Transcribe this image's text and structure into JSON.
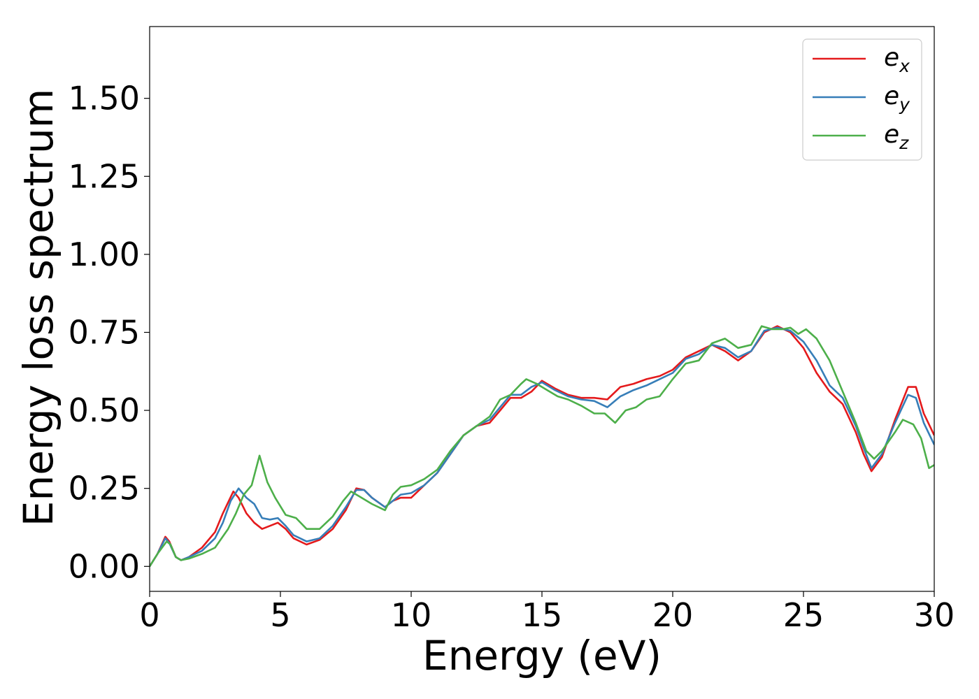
{
  "chart_data": {
    "type": "line",
    "title": "",
    "xlabel": "Energy (eV)",
    "ylabel": "Energy loss spectrum",
    "xlim": [
      0,
      30
    ],
    "ylim": [
      -0.08,
      1.73
    ],
    "xticks": [
      0,
      5,
      10,
      15,
      20,
      25,
      30
    ],
    "xtick_labels": [
      "0",
      "5",
      "10",
      "15",
      "20",
      "25",
      "30"
    ],
    "yticks": [
      0.0,
      0.25,
      0.5,
      0.75,
      1.0,
      1.25,
      1.5
    ],
    "ytick_labels": [
      "0.00",
      "0.25",
      "0.50",
      "0.75",
      "1.00",
      "1.25",
      "1.50"
    ],
    "grid": false,
    "legend_position": "top-right",
    "series": [
      {
        "name": "e",
        "subscript": "x",
        "color": "#e41a1c",
        "points": [
          [
            0,
            0
          ],
          [
            0.3,
            0.04
          ],
          [
            0.6,
            0.095
          ],
          [
            0.75,
            0.08
          ],
          [
            1.0,
            0.03
          ],
          [
            1.2,
            0.02
          ],
          [
            1.5,
            0.03
          ],
          [
            2.0,
            0.06
          ],
          [
            2.5,
            0.11
          ],
          [
            2.8,
            0.17
          ],
          [
            3.2,
            0.24
          ],
          [
            3.4,
            0.22
          ],
          [
            3.7,
            0.17
          ],
          [
            4.0,
            0.14
          ],
          [
            4.3,
            0.12
          ],
          [
            4.6,
            0.13
          ],
          [
            4.9,
            0.14
          ],
          [
            5.2,
            0.12
          ],
          [
            5.5,
            0.09
          ],
          [
            6.0,
            0.07
          ],
          [
            6.5,
            0.085
          ],
          [
            7.0,
            0.12
          ],
          [
            7.5,
            0.18
          ],
          [
            7.9,
            0.25
          ],
          [
            8.2,
            0.245
          ],
          [
            8.5,
            0.22
          ],
          [
            9.0,
            0.19
          ],
          [
            9.3,
            0.21
          ],
          [
            9.6,
            0.22
          ],
          [
            10.0,
            0.22
          ],
          [
            10.5,
            0.26
          ],
          [
            11.0,
            0.3
          ],
          [
            11.5,
            0.36
          ],
          [
            12.0,
            0.42
          ],
          [
            12.5,
            0.45
          ],
          [
            13.0,
            0.46
          ],
          [
            13.4,
            0.5
          ],
          [
            13.8,
            0.54
          ],
          [
            14.2,
            0.54
          ],
          [
            14.6,
            0.56
          ],
          [
            15.0,
            0.595
          ],
          [
            15.5,
            0.57
          ],
          [
            16.0,
            0.55
          ],
          [
            16.5,
            0.54
          ],
          [
            17.0,
            0.54
          ],
          [
            17.5,
            0.535
          ],
          [
            18.0,
            0.575
          ],
          [
            18.5,
            0.585
          ],
          [
            19.0,
            0.6
          ],
          [
            19.5,
            0.61
          ],
          [
            20.0,
            0.63
          ],
          [
            20.5,
            0.67
          ],
          [
            21.0,
            0.69
          ],
          [
            21.5,
            0.71
          ],
          [
            22.0,
            0.69
          ],
          [
            22.5,
            0.66
          ],
          [
            23.0,
            0.69
          ],
          [
            23.5,
            0.75
          ],
          [
            24.0,
            0.77
          ],
          [
            24.5,
            0.75
          ],
          [
            25.0,
            0.7
          ],
          [
            25.5,
            0.62
          ],
          [
            26.0,
            0.56
          ],
          [
            26.5,
            0.52
          ],
          [
            27.0,
            0.43
          ],
          [
            27.3,
            0.36
          ],
          [
            27.6,
            0.305
          ],
          [
            28.0,
            0.35
          ],
          [
            28.5,
            0.47
          ],
          [
            29.0,
            0.575
          ],
          [
            29.3,
            0.575
          ],
          [
            29.6,
            0.49
          ],
          [
            30.0,
            0.42
          ]
        ]
      },
      {
        "name": "e",
        "subscript": "y",
        "color": "#377eb8",
        "points": [
          [
            0,
            0
          ],
          [
            0.3,
            0.04
          ],
          [
            0.6,
            0.09
          ],
          [
            0.75,
            0.075
          ],
          [
            1.0,
            0.03
          ],
          [
            1.2,
            0.02
          ],
          [
            1.5,
            0.03
          ],
          [
            2.0,
            0.05
          ],
          [
            2.5,
            0.09
          ],
          [
            2.8,
            0.14
          ],
          [
            3.1,
            0.21
          ],
          [
            3.4,
            0.25
          ],
          [
            3.7,
            0.22
          ],
          [
            4.0,
            0.2
          ],
          [
            4.3,
            0.155
          ],
          [
            4.6,
            0.15
          ],
          [
            4.9,
            0.155
          ],
          [
            5.2,
            0.13
          ],
          [
            5.5,
            0.1
          ],
          [
            6.0,
            0.08
          ],
          [
            6.5,
            0.09
          ],
          [
            7.0,
            0.13
          ],
          [
            7.5,
            0.19
          ],
          [
            7.9,
            0.245
          ],
          [
            8.2,
            0.245
          ],
          [
            8.5,
            0.22
          ],
          [
            9.0,
            0.19
          ],
          [
            9.3,
            0.21
          ],
          [
            9.6,
            0.23
          ],
          [
            10.0,
            0.235
          ],
          [
            10.5,
            0.26
          ],
          [
            11.0,
            0.3
          ],
          [
            11.5,
            0.36
          ],
          [
            12.0,
            0.42
          ],
          [
            12.5,
            0.45
          ],
          [
            13.0,
            0.47
          ],
          [
            13.4,
            0.51
          ],
          [
            13.8,
            0.55
          ],
          [
            14.2,
            0.55
          ],
          [
            14.6,
            0.575
          ],
          [
            15.0,
            0.59
          ],
          [
            15.5,
            0.565
          ],
          [
            16.0,
            0.545
          ],
          [
            16.5,
            0.535
          ],
          [
            17.0,
            0.53
          ],
          [
            17.5,
            0.51
          ],
          [
            18.0,
            0.545
          ],
          [
            18.5,
            0.565
          ],
          [
            19.0,
            0.58
          ],
          [
            19.5,
            0.6
          ],
          [
            20.0,
            0.62
          ],
          [
            20.5,
            0.665
          ],
          [
            21.0,
            0.68
          ],
          [
            21.5,
            0.71
          ],
          [
            22.0,
            0.7
          ],
          [
            22.5,
            0.67
          ],
          [
            23.0,
            0.69
          ],
          [
            23.5,
            0.755
          ],
          [
            24.0,
            0.765
          ],
          [
            24.5,
            0.755
          ],
          [
            25.0,
            0.72
          ],
          [
            25.5,
            0.66
          ],
          [
            26.0,
            0.58
          ],
          [
            26.5,
            0.54
          ],
          [
            27.0,
            0.45
          ],
          [
            27.3,
            0.38
          ],
          [
            27.6,
            0.315
          ],
          [
            28.0,
            0.36
          ],
          [
            28.5,
            0.46
          ],
          [
            29.0,
            0.55
          ],
          [
            29.3,
            0.54
          ],
          [
            29.6,
            0.46
          ],
          [
            30.0,
            0.39
          ]
        ]
      },
      {
        "name": "e",
        "subscript": "z",
        "color": "#4daf4a",
        "points": [
          [
            0,
            0
          ],
          [
            0.3,
            0.04
          ],
          [
            0.65,
            0.08
          ],
          [
            0.8,
            0.07
          ],
          [
            1.0,
            0.03
          ],
          [
            1.2,
            0.02
          ],
          [
            1.5,
            0.025
          ],
          [
            2.0,
            0.04
          ],
          [
            2.5,
            0.06
          ],
          [
            3.0,
            0.12
          ],
          [
            3.3,
            0.17
          ],
          [
            3.6,
            0.23
          ],
          [
            3.9,
            0.26
          ],
          [
            4.2,
            0.355
          ],
          [
            4.5,
            0.27
          ],
          [
            4.8,
            0.22
          ],
          [
            5.2,
            0.165
          ],
          [
            5.6,
            0.155
          ],
          [
            6.0,
            0.12
          ],
          [
            6.5,
            0.12
          ],
          [
            7.0,
            0.16
          ],
          [
            7.4,
            0.21
          ],
          [
            7.7,
            0.24
          ],
          [
            8.0,
            0.225
          ],
          [
            8.5,
            0.2
          ],
          [
            9.0,
            0.18
          ],
          [
            9.3,
            0.23
          ],
          [
            9.6,
            0.255
          ],
          [
            10.0,
            0.26
          ],
          [
            10.5,
            0.28
          ],
          [
            11.0,
            0.31
          ],
          [
            11.5,
            0.37
          ],
          [
            12.0,
            0.42
          ],
          [
            12.5,
            0.45
          ],
          [
            13.0,
            0.48
          ],
          [
            13.4,
            0.535
          ],
          [
            13.8,
            0.55
          ],
          [
            14.2,
            0.585
          ],
          [
            14.4,
            0.6
          ],
          [
            14.8,
            0.585
          ],
          [
            15.2,
            0.565
          ],
          [
            15.6,
            0.545
          ],
          [
            16.0,
            0.535
          ],
          [
            16.5,
            0.515
          ],
          [
            17.0,
            0.49
          ],
          [
            17.4,
            0.49
          ],
          [
            17.8,
            0.46
          ],
          [
            18.2,
            0.5
          ],
          [
            18.6,
            0.51
          ],
          [
            19.0,
            0.535
          ],
          [
            19.5,
            0.545
          ],
          [
            20.0,
            0.6
          ],
          [
            20.5,
            0.65
          ],
          [
            21.0,
            0.66
          ],
          [
            21.5,
            0.715
          ],
          [
            22.0,
            0.73
          ],
          [
            22.5,
            0.7
          ],
          [
            23.0,
            0.71
          ],
          [
            23.4,
            0.77
          ],
          [
            23.8,
            0.76
          ],
          [
            24.2,
            0.76
          ],
          [
            24.5,
            0.765
          ],
          [
            24.8,
            0.745
          ],
          [
            25.1,
            0.76
          ],
          [
            25.5,
            0.73
          ],
          [
            26.0,
            0.66
          ],
          [
            26.5,
            0.56
          ],
          [
            27.0,
            0.46
          ],
          [
            27.4,
            0.37
          ],
          [
            27.7,
            0.345
          ],
          [
            28.0,
            0.37
          ],
          [
            28.5,
            0.43
          ],
          [
            28.8,
            0.47
          ],
          [
            29.2,
            0.455
          ],
          [
            29.5,
            0.41
          ],
          [
            29.8,
            0.315
          ],
          [
            30.0,
            0.325
          ]
        ]
      }
    ]
  }
}
